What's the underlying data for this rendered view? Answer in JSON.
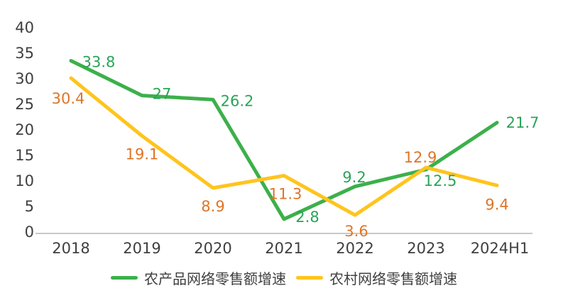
{
  "chart_data": {
    "type": "line",
    "categories": [
      "2018",
      "2019",
      "2020",
      "2021",
      "2022",
      "2023",
      "2024H1"
    ],
    "series": [
      {
        "name": "农产品网络零售额增速",
        "color": "#3cb04a",
        "label_color": "#2aa457",
        "values": [
          33.8,
          27,
          26.2,
          2.8,
          9.2,
          12.5,
          21.7
        ]
      },
      {
        "name": "农村网络零售额增速",
        "color": "#ffc41d",
        "label_color": "#de7527",
        "values": [
          30.4,
          19.1,
          8.9,
          11.3,
          3.6,
          12.9,
          9.4
        ]
      }
    ],
    "y_ticks": [
      0,
      5,
      10,
      15,
      20,
      25,
      30,
      35,
      40
    ],
    "ylim": [
      0,
      40
    ],
    "title": "",
    "xlabel": "",
    "ylabel": "",
    "grid": false,
    "legend_position": "bottom",
    "axis_color": "#c9c9c9",
    "text_color": "#3f3f3f"
  }
}
